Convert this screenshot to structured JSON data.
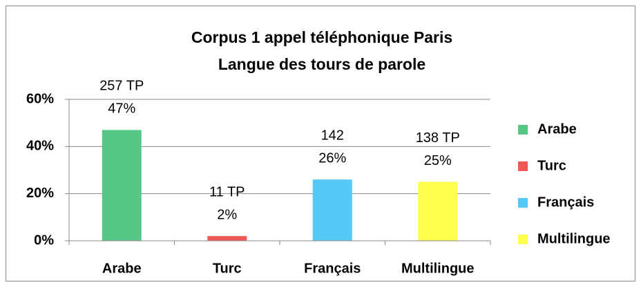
{
  "chart_data": {
    "type": "bar",
    "title": [
      "Corpus 1 appel téléphonique Paris",
      "Langue des tours de parole"
    ],
    "categories": [
      "Arabe",
      "Turc",
      "Français",
      "Multilingue"
    ],
    "values": [
      47,
      2,
      26,
      25
    ],
    "value_labels": [
      "47%",
      "2%",
      "26%",
      "25%"
    ],
    "count_labels": [
      "257 TP",
      "11 TP",
      "142",
      "138 TP"
    ],
    "colors": [
      "#57c785",
      "#f25757",
      "#56c8f5",
      "#ffff4d"
    ],
    "ylim": [
      0,
      60
    ],
    "yticks": [
      {
        "value": 0,
        "label": "0%"
      },
      {
        "value": 20,
        "label": "20%"
      },
      {
        "value": 40,
        "label": "40%"
      },
      {
        "value": 60,
        "label": "60%"
      }
    ],
    "grid": true,
    "legend": "right"
  }
}
